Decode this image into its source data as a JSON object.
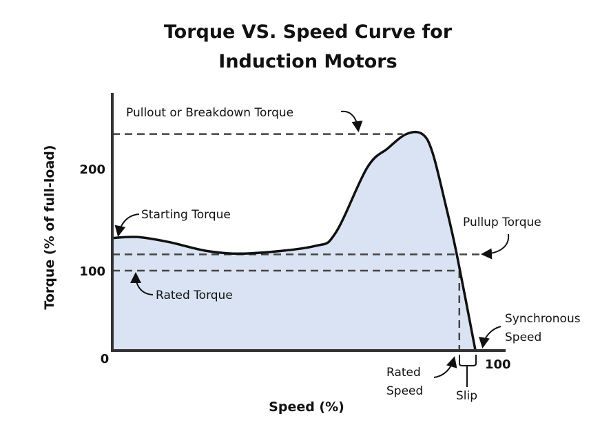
{
  "chart_data": {
    "type": "area",
    "title_lines": [
      "Torque VS. Speed Curve for",
      "Induction Motors"
    ],
    "xlabel": "Speed (%)",
    "ylabel": "Torque (% of full-load)",
    "x_ticks": [
      {
        "value": 0,
        "label": "0"
      },
      {
        "value": 100,
        "label": "100"
      }
    ],
    "y_ticks": [
      {
        "value": 100,
        "label": "100"
      },
      {
        "value": 200,
        "label": "200"
      }
    ],
    "xlim": [
      0,
      100
    ],
    "grid": false,
    "colors": {
      "fill": "#dae3f3",
      "line": "#111111",
      "dash": "#444444"
    },
    "series": [
      {
        "x": [
          0,
          7,
          15.7,
          26.6,
          38,
          55.6,
          61.5,
          70.2,
          75.9,
          81,
          85.4,
          88.2,
          91.8,
          94.9,
          100
        ],
        "y": [
          132,
          133,
          128,
          119,
          117,
          124,
          137,
          201,
          220,
          234,
          234,
          216,
          165,
          116,
          0
        ]
      }
    ],
    "reference_lines": {
      "pullout_torque": 234,
      "pullup_torque": 116,
      "rated_torque": 100,
      "rated_speed": 95.6
    },
    "annotations": {
      "pullout": "Pullout or Breakdown Torque",
      "starting": "Starting Torque",
      "rated_torque": "Rated Torque",
      "pullup": "Pullup Torque",
      "synchronous_lines": [
        "Synchronous",
        "Speed"
      ],
      "rated_speed_lines": [
        "Rated",
        "Speed"
      ],
      "slip": "Slip"
    }
  }
}
